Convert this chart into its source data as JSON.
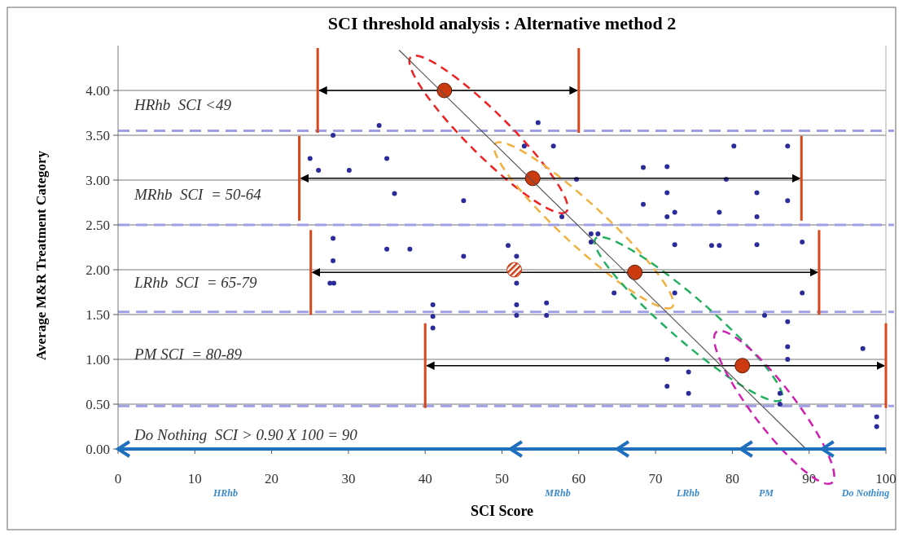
{
  "chart_data": {
    "type": "scatter",
    "title": "SCI threshold analysis : Alternative method 2",
    "xlabel": "SCI Score",
    "ylabel": "Average M&R Treatment Category",
    "xlim": [
      0,
      100
    ],
    "xticks": [
      0,
      10,
      20,
      30,
      40,
      50,
      60,
      70,
      80,
      90,
      100
    ],
    "ylim": [
      0,
      4.5
    ],
    "yticks": [
      {
        "value": 0,
        "label": "0.00"
      },
      {
        "value": 0.5,
        "label": "0.50"
      },
      {
        "value": 1,
        "label": "1.00"
      },
      {
        "value": 1.5,
        "label": "1.50"
      },
      {
        "value": 2,
        "label": "2.00"
      },
      {
        "value": 2.5,
        "label": "2.50"
      },
      {
        "value": 3,
        "label": "3.00"
      },
      {
        "value": 3.5,
        "label": "3.50"
      },
      {
        "value": 4,
        "label": "4.00"
      }
    ],
    "grid": "y",
    "series": [
      {
        "color": "#2b2b9a",
        "marker": "circle",
        "x": [
          28,
          25,
          26.1,
          30.1,
          35,
          36,
          34,
          28,
          35,
          38,
          28,
          54.7,
          52.9,
          56.7,
          80.2,
          87.2,
          68.4,
          71.5,
          59.7,
          79.2,
          45,
          71.5,
          83.2,
          68.4,
          87.2,
          57.8,
          72.5,
          78.3,
          71.5,
          83.2,
          61.6,
          62.5,
          61.6,
          50.8,
          72.5,
          77.3,
          78.3,
          83.2,
          89.1,
          45,
          51.9,
          27.6,
          28.1,
          41,
          41,
          41,
          51.9,
          64.6,
          72.5,
          89.1,
          51.9,
          55.8,
          51.9,
          55.8,
          84.2,
          87.2,
          87.2,
          97,
          71.5,
          87.2,
          74.3,
          71.5,
          74.3,
          86.2,
          86.2,
          98.8,
          98.8
        ],
        "values": [
          3.5,
          3.24,
          3.11,
          3.11,
          3.24,
          2.85,
          3.61,
          2.35,
          2.23,
          2.23,
          2.1,
          3.64,
          3.38,
          3.38,
          3.38,
          3.38,
          3.14,
          3.15,
          3.01,
          3.01,
          2.77,
          2.86,
          2.86,
          2.73,
          2.77,
          2.59,
          2.64,
          2.64,
          2.59,
          2.59,
          2.4,
          2.4,
          2.31,
          2.27,
          2.28,
          2.27,
          2.27,
          2.28,
          2.31,
          2.15,
          2.15,
          1.85,
          1.85,
          1.61,
          1.48,
          1.35,
          1.85,
          1.74,
          1.74,
          1.74,
          1.61,
          1.63,
          1.49,
          1.49,
          1.49,
          1.42,
          1.14,
          1.12,
          1.0,
          1.0,
          0.86,
          0.7,
          0.62,
          0.62,
          0.5,
          0.36,
          0.25
        ]
      },
      {
        "color": "#cc3a10",
        "marker": "circle",
        "x": [
          42.5,
          54,
          67.3,
          81.3
        ],
        "values": [
          4,
          3.02,
          1.97,
          0.93
        ],
        "xerrors": [
          [
            26,
            60
          ],
          [
            23.6,
            89
          ],
          [
            25.1,
            91.3
          ],
          [
            40,
            100
          ]
        ]
      },
      {
        "color": "#cc3a10",
        "marker": "circle",
        "x": [
          51.6
        ],
        "values": [
          2
        ]
      },
      {
        "type": "line",
        "color": "#555555",
        "x": [
          36.6,
          89.6
        ],
        "values": [
          4.45,
          0
        ]
      },
      {
        "type": "line",
        "color": "#1f6fbf",
        "x": [
          100,
          91.7,
          81.1,
          65,
          51.1,
          0
        ],
        "values": [
          0,
          0,
          0,
          0,
          0,
          0
        ]
      }
    ],
    "ref_lines": [
      {
        "axis": "y",
        "value": 0.48,
        "color": "#9f9fe8",
        "line_style": "dashed"
      },
      {
        "axis": "y",
        "value": 1.53,
        "color": "#9f9fe8",
        "line_style": "dashed"
      },
      {
        "axis": "y",
        "value": 2.5,
        "color": "#9f9fe8",
        "line_style": "dashed"
      },
      {
        "axis": "y",
        "value": 3.55,
        "color": "#9f9fe8",
        "line_style": "dashed"
      }
    ],
    "annotations": [
      "HRhb  SCI <49",
      "MRhb  SCI  = 50-64",
      "LRhb  SCI  = 65-79",
      "PM SCI  = 80-89",
      "Do Nothing  SCI > 0.90 X 100 = 90",
      "HRhb",
      "MRhb",
      "LRhb",
      "PM",
      "Do Nothing"
    ]
  }
}
